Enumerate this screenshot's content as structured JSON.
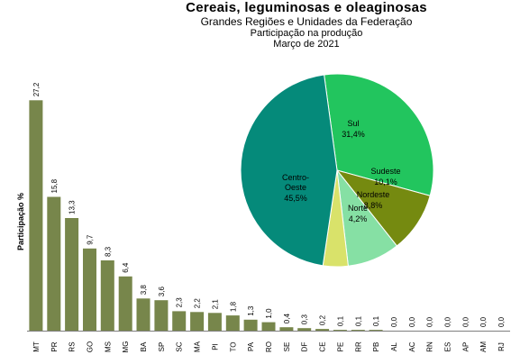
{
  "header": {
    "title": "Cereais, leguminosas e oleaginosas",
    "subtitle": "Grandes Regiões e Unidades da Federação",
    "note": "Participação na produção",
    "date": "Março de 2021"
  },
  "colors": {
    "bar": "#77864b",
    "axis": "#7f7f7f"
  },
  "chart_data": [
    {
      "type": "bar",
      "ylabel": "Participação %",
      "categories": [
        "MT",
        "PR",
        "RS",
        "GO",
        "MS",
        "MG",
        "BA",
        "SP",
        "SC",
        "MA",
        "PI",
        "TO",
        "PA",
        "RO",
        "SE",
        "DF",
        "CE",
        "PE",
        "RR",
        "PB",
        "AL",
        "AC",
        "RN",
        "ES",
        "AP",
        "AM",
        "RJ"
      ],
      "values": [
        27.2,
        15.8,
        13.3,
        9.7,
        8.3,
        6.4,
        3.8,
        3.6,
        2.3,
        2.2,
        2.1,
        1.8,
        1.3,
        1.0,
        0.4,
        0.3,
        0.2,
        0.1,
        0.1,
        0.1,
        0.0,
        0.0,
        0.0,
        0.0,
        0.0,
        0.0,
        0.0
      ],
      "labels": [
        "27,2",
        "15,8",
        "13,3",
        "9,7",
        "8,3",
        "6,4",
        "3,8",
        "3,6",
        "2,3",
        "2,2",
        "2,1",
        "1,8",
        "1,3",
        "1,0",
        "0,4",
        "0,3",
        "0,2",
        "0,1",
        "0,1",
        "0,1",
        "0,0",
        "0,0",
        "0,0",
        "0,0",
        "0,0",
        "0,0",
        "0,0"
      ],
      "ylim": [
        0,
        30
      ]
    },
    {
      "type": "pie",
      "slices": [
        {
          "name": "Sul",
          "value": 31.4,
          "label": "31,4%",
          "color": "#22c55e"
        },
        {
          "name": "Sudeste",
          "value": 10.1,
          "label": "10,1%",
          "color": "#758a10"
        },
        {
          "name": "Nordeste",
          "value": 8.8,
          "label": "8,8%",
          "color": "#86e0a4"
        },
        {
          "name": "Norte",
          "value": 4.2,
          "label": "4,2%",
          "color": "#d9e26a"
        },
        {
          "name": "Centro-Oeste",
          "value": 45.5,
          "label": "45,5%",
          "color": "#058a7a"
        }
      ]
    }
  ]
}
